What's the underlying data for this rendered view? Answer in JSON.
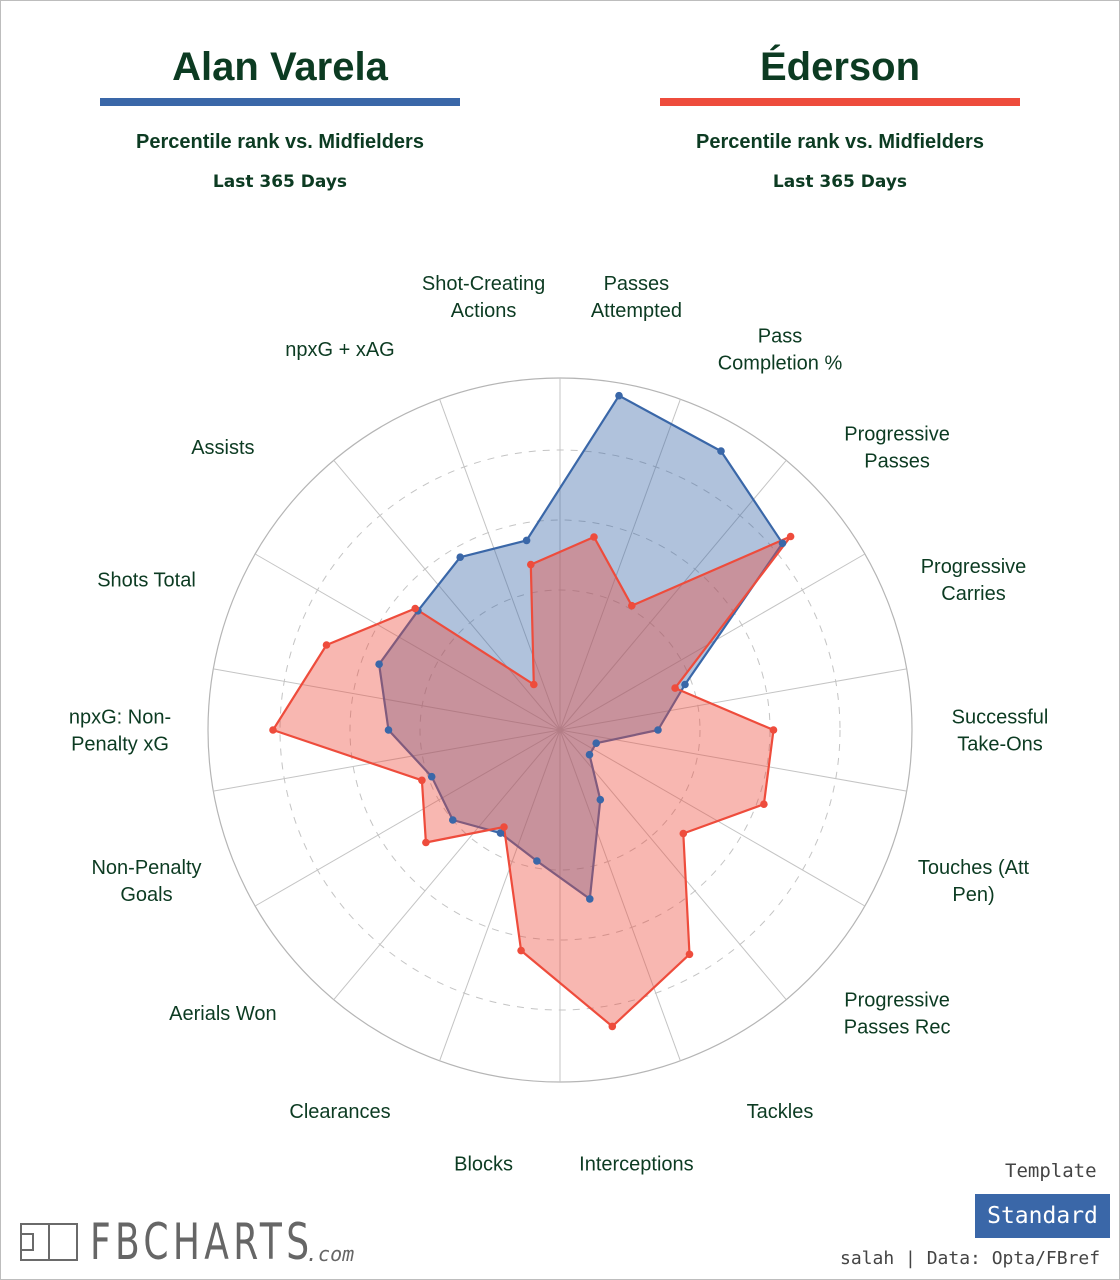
{
  "players": [
    {
      "name": "Alan Varela",
      "color": "#3a67a8",
      "subtitle": "Percentile rank vs. Midfielders",
      "period": "Last 365 Days"
    },
    {
      "name": "Éderson",
      "color": "#ee4c3c",
      "subtitle": "Percentile rank vs. Midfielders",
      "period": "Last 365 Days"
    }
  ],
  "chart_data": {
    "type": "radar",
    "scale": [
      0,
      100
    ],
    "grid": true,
    "categories": [
      "Passes Attempted",
      "Pass Completion %",
      "Progressive Passes",
      "Progressive Carries",
      "Successful Take-Ons",
      "Touches (Att Pen)",
      "Progressive Passes Rec",
      "Tackles",
      "Interceptions",
      "Blocks",
      "Clearances",
      "Aerials Won",
      "Non-Penalty Goals",
      "npxG: Non-Penalty xG",
      "Shots Total",
      "Assists",
      "npxG + xAG",
      "Shot-Creating Actions"
    ],
    "category_lines": [
      [
        "Passes",
        "Attempted"
      ],
      [
        "Pass",
        "Completion %"
      ],
      [
        "Progressive",
        "Passes"
      ],
      [
        "Progressive",
        "Carries"
      ],
      [
        "Successful",
        "Take-Ons"
      ],
      [
        "Touches (Att",
        "Pen)"
      ],
      [
        "Progressive",
        "Passes Rec"
      ],
      [
        "Tackles"
      ],
      [
        "Interceptions"
      ],
      [
        "Blocks"
      ],
      [
        "Clearances"
      ],
      [
        "Aerials Won"
      ],
      [
        "Non-Penalty",
        "Goals"
      ],
      [
        "npxG: Non-",
        "Penalty xG"
      ],
      [
        "Shots Total"
      ],
      [
        "Assists"
      ],
      [
        "npxG + xAG"
      ],
      [
        "Shot-Creating",
        "Actions"
      ]
    ],
    "series": [
      {
        "name": "Alan Varela",
        "color": "#3a67a8",
        "values": [
          97,
          92,
          83,
          38,
          28,
          11,
          11,
          23,
          49,
          38,
          34,
          40,
          39,
          49,
          55,
          53,
          57,
          55
        ]
      },
      {
        "name": "Éderson",
        "color": "#ee4c3c",
        "values": [
          56,
          41,
          86,
          35,
          61,
          62,
          46,
          74,
          86,
          64,
          32,
          50,
          42,
          82,
          71,
          54,
          15,
          48
        ]
      }
    ]
  },
  "branding": {
    "name": "FBCHARTS",
    "suffix": ".com"
  },
  "template": {
    "label": "Template",
    "value": "Standard"
  },
  "credit": "salah | Data: Opta/FBref"
}
